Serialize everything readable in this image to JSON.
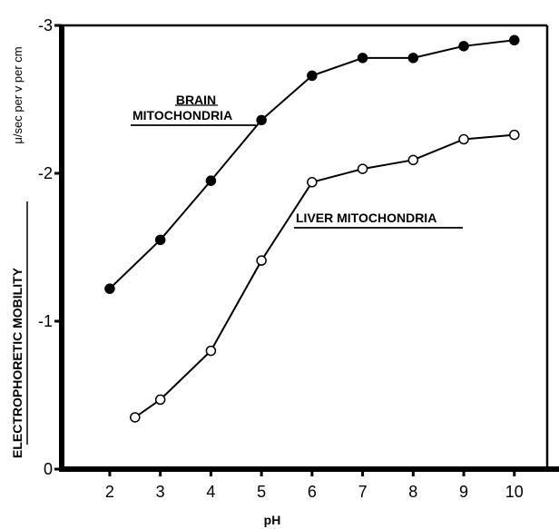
{
  "chart_data": {
    "type": "line",
    "xlabel": "pH",
    "ylabel": "ELECTROPHORETIC MOBILITY",
    "yunit": "μ/sec per v per cm",
    "xlim": [
      1.05,
      10.65
    ],
    "ylim": [
      0,
      3
    ],
    "x_ticks": [
      "2",
      "3",
      "4",
      "5",
      "6",
      "7",
      "8",
      "9",
      "10"
    ],
    "y_ticks": [
      "0",
      "-1",
      "-2",
      "-3"
    ],
    "grid": false,
    "series": [
      {
        "name": "BRAIN MITOCHONDRIA",
        "marker": "filled-circle",
        "color": "#000000",
        "points": [
          {
            "x": 2,
            "y": 1.22
          },
          {
            "x": 3,
            "y": 1.55
          },
          {
            "x": 4,
            "y": 1.95
          },
          {
            "x": 5,
            "y": 2.36
          },
          {
            "x": 6,
            "y": 2.66
          },
          {
            "x": 7,
            "y": 2.78
          },
          {
            "x": 8,
            "y": 2.78
          },
          {
            "x": 9,
            "y": 2.86
          },
          {
            "x": 10,
            "y": 2.9
          }
        ]
      },
      {
        "name": "LIVER MITOCHONDRIA",
        "marker": "open-circle",
        "color": "#000000",
        "points": [
          {
            "x": 2.5,
            "y": 0.35
          },
          {
            "x": 3,
            "y": 0.47
          },
          {
            "x": 4,
            "y": 0.8
          },
          {
            "x": 5,
            "y": 1.41
          },
          {
            "x": 6,
            "y": 1.94
          },
          {
            "x": 7,
            "y": 2.03
          },
          {
            "x": 8,
            "y": 2.09
          },
          {
            "x": 9,
            "y": 2.23
          },
          {
            "x": 10,
            "y": 2.26
          }
        ]
      }
    ]
  }
}
